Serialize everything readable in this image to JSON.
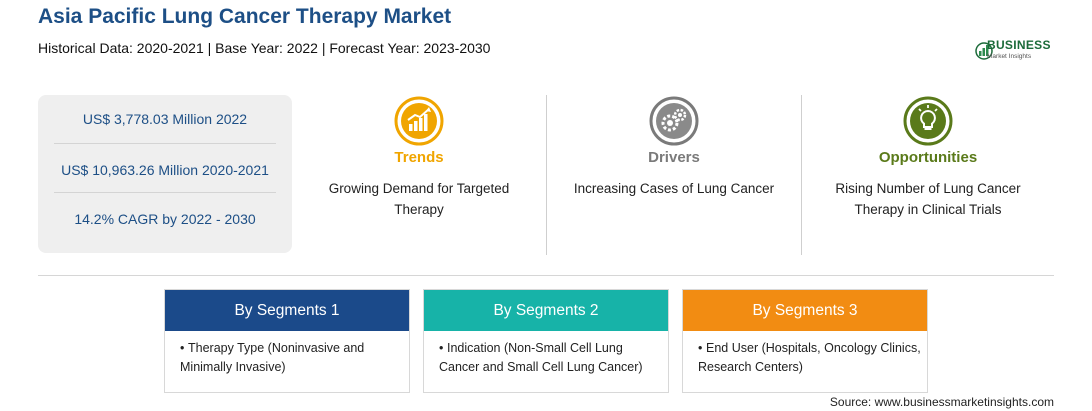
{
  "header": {
    "title": "Asia Pacific Lung Cancer Therapy Market",
    "subtitle": "Historical Data: 2020-2021 | Base Year: 2022 | Forecast Year: 2023-2030"
  },
  "logo": {
    "word": "BUSINESS",
    "sub": "Market Insights"
  },
  "stats": [
    "US$ 3,778.03 Million 2022",
    "US$ 10,963.26 Million 2020-2021",
    "14.2% CAGR by 2022 - 2030"
  ],
  "features": [
    {
      "title": "Trends",
      "desc": "Growing Demand for Targeted Therapy",
      "color": "#f0a500",
      "icon": "trend-chart-icon"
    },
    {
      "title": "Drivers",
      "desc": "Increasing Cases of Lung Cancer",
      "color": "#7a7a7a",
      "icon": "gears-icon"
    },
    {
      "title": "Opportunities",
      "desc": "Rising Number of Lung Cancer Therapy in Clinical Trials",
      "color": "#5a7a1a",
      "icon": "lightbulb-icon"
    }
  ],
  "segments": [
    {
      "title": "By Segments 1",
      "color": "#1b4a8a",
      "text": "Therapy Type (Noninvasive and Minimally Invasive)"
    },
    {
      "title": "By Segments 2",
      "color": "#17b3a8",
      "text": "Indication (Non-Small Cell Lung Cancer and Small Cell Lung Cancer)"
    },
    {
      "title": "By Segments 3",
      "color": "#f28c12",
      "text": "End User (Hospitals, Oncology Clinics, Research Centers)"
    }
  ],
  "source": "Source: www.businessmarketinsights.com"
}
